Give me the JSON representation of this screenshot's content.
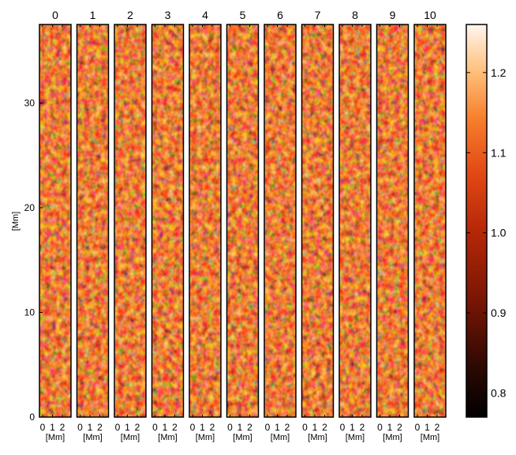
{
  "panels": {
    "labels": [
      "0",
      "1",
      "2",
      "3",
      "4",
      "5",
      "6",
      "7",
      "8",
      "9",
      "10"
    ],
    "x_ticks": [
      "0",
      "1",
      "2"
    ],
    "x_axis_title": "[Mm]"
  },
  "y_axis": {
    "title": "[Mm]",
    "ticks": [
      "0",
      "10",
      "20",
      "30"
    ],
    "range": [
      0,
      37.5
    ]
  },
  "colorbar": {
    "ticks": [
      "0.8",
      "0.9",
      "1.0",
      "1.1",
      "1.2"
    ],
    "range": [
      0.77,
      1.26
    ],
    "colormap": [
      "#000000",
      "#3a0a02",
      "#8c1a04",
      "#c8300a",
      "#e8501a",
      "#f7852e",
      "#ffc07a",
      "#fff3e6"
    ]
  }
}
